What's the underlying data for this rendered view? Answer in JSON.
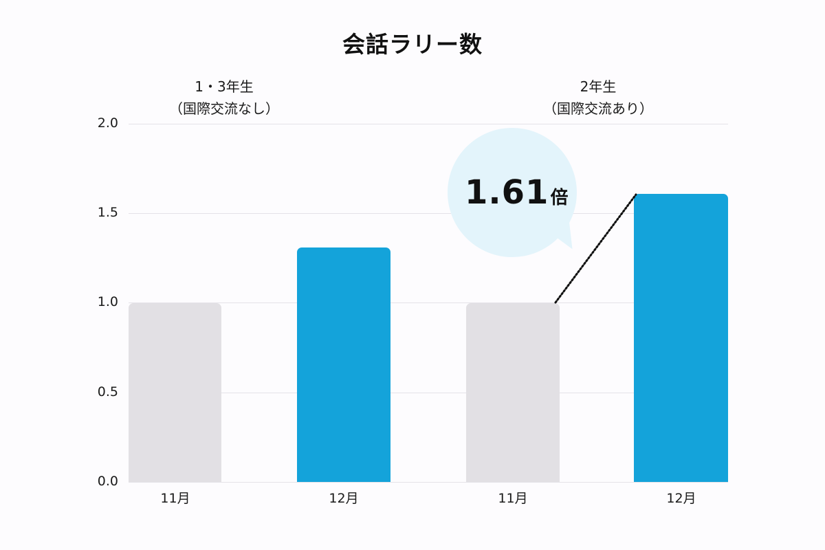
{
  "chart_data": {
    "type": "bar",
    "title": "会話ラリー数",
    "xlabel": "",
    "ylabel": "",
    "ylim": [
      0,
      2.0
    ],
    "yticks": [
      "0.0",
      "0.5",
      "1.0",
      "1.5",
      "2.0"
    ],
    "grid": true,
    "groups": [
      {
        "label_line1": "1・3年生",
        "label_line2": "（国際交流なし）",
        "categories": [
          "11月",
          "12月"
        ],
        "values": [
          1.0,
          1.31
        ]
      },
      {
        "label_line1": "2年生",
        "label_line2": "（国際交流あり）",
        "categories": [
          "11月",
          "12月"
        ],
        "values": [
          1.0,
          1.61
        ]
      }
    ],
    "series_colors": {
      "11月": "#e2e0e4",
      "12月": "#14a3da"
    },
    "annotation": {
      "value": "1.61",
      "unit": "倍",
      "target_group": "2年生",
      "style": "speech-bubble with dotted connector from 11月 bar top to 12月 bar top"
    }
  },
  "colors": {
    "baseline_bar": "#e2e0e4",
    "highlight_bar": "#14a3da",
    "bubble": "#e3f4fb",
    "grid": "#e4e2e8"
  }
}
